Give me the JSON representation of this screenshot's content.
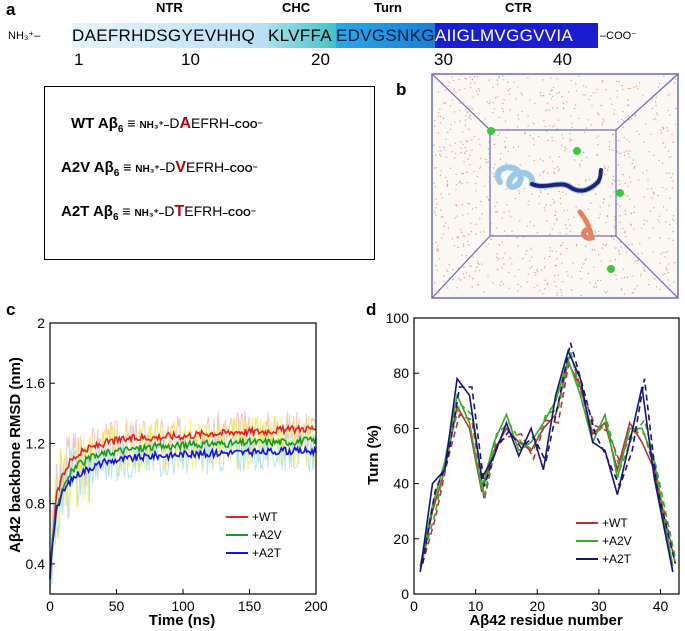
{
  "panel_labels": {
    "a": "a",
    "b": "b",
    "c": "c",
    "d": "d"
  },
  "sequence": {
    "n_term": "NH₃⁺",
    "c_term": "COO⁻",
    "segments": [
      {
        "text": "DAEFRHDSGYEVHHQ",
        "color": "#cfe8f8"
      },
      {
        "text": "KLVFFA",
        "color": "#5cc9cc"
      },
      {
        "text": "EDVGSNKG",
        "color": "#1e9be0"
      },
      {
        "text": "AIIGLMVGGVVIA",
        "color": "#1a1acc"
      }
    ],
    "regions": [
      "NTR",
      "CHC",
      "Turn",
      "CTR"
    ],
    "numbers": [
      "1",
      "10",
      "20",
      "30",
      "40"
    ]
  },
  "variants": [
    {
      "name": "WT Aβ",
      "sub": "6",
      "prefix": "D",
      "mutant": "A",
      "suffix": "EFRH"
    },
    {
      "name": "A2V Aβ",
      "sub": "6",
      "prefix": "D",
      "mutant": "V",
      "suffix": "EFRH"
    },
    {
      "name": "A2T Aβ",
      "sub": "6",
      "prefix": "D",
      "mutant": "T",
      "suffix": "EFRH"
    }
  ],
  "variant_text": {
    "equiv": "≡",
    "nterm": "NH₃⁺–",
    "cterm": "–COO⁻"
  },
  "chart_data": [
    {
      "type": "line",
      "panel": "c",
      "xlabel": "Time (ns)",
      "ylabel": "Aβ42 backbone RMSD (nm)",
      "xlim": [
        0,
        200
      ],
      "ylim": [
        0.2,
        2.0
      ],
      "xticks": [
        "0",
        "50",
        "100",
        "150",
        "200"
      ],
      "yticks": [
        "0.4",
        "0.8",
        "1.2",
        "1.6",
        "2"
      ],
      "legend": "bottom-right",
      "series": [
        {
          "name": "+WT",
          "color": "#e8201e",
          "x": [
            0,
            2,
            5,
            10,
            15,
            20,
            30,
            40,
            50,
            60,
            70,
            80,
            90,
            100,
            110,
            120,
            130,
            140,
            150,
            160,
            170,
            180,
            190,
            200
          ],
          "y": [
            0.3,
            0.6,
            0.85,
            1.0,
            1.08,
            1.12,
            1.17,
            1.2,
            1.22,
            1.23,
            1.24,
            1.24,
            1.25,
            1.25,
            1.26,
            1.27,
            1.27,
            1.28,
            1.28,
            1.28,
            1.29,
            1.29,
            1.3,
            1.3
          ]
        },
        {
          "name": "+A2V",
          "color": "#1a9a1a",
          "x": [
            0,
            2,
            5,
            10,
            15,
            20,
            30,
            40,
            50,
            60,
            70,
            80,
            90,
            100,
            110,
            120,
            130,
            140,
            150,
            160,
            170,
            180,
            190,
            200
          ],
          "y": [
            0.28,
            0.55,
            0.78,
            0.92,
            1.0,
            1.05,
            1.1,
            1.13,
            1.15,
            1.16,
            1.17,
            1.18,
            1.18,
            1.19,
            1.19,
            1.2,
            1.2,
            1.2,
            1.21,
            1.21,
            1.21,
            1.21,
            1.22,
            1.22
          ]
        },
        {
          "name": "+A2T",
          "color": "#1414e0",
          "x": [
            0,
            2,
            5,
            10,
            15,
            20,
            30,
            40,
            50,
            60,
            70,
            80,
            90,
            100,
            110,
            120,
            130,
            140,
            150,
            160,
            170,
            180,
            190,
            200
          ],
          "y": [
            0.3,
            0.55,
            0.76,
            0.88,
            0.95,
            0.99,
            1.04,
            1.07,
            1.09,
            1.1,
            1.11,
            1.12,
            1.12,
            1.13,
            1.13,
            1.13,
            1.14,
            1.14,
            1.14,
            1.14,
            1.15,
            1.15,
            1.15,
            1.15
          ]
        }
      ]
    },
    {
      "type": "line",
      "panel": "d",
      "xlabel": "Aβ42 residue number",
      "ylabel": "Turn (%)",
      "xlim": [
        0,
        43
      ],
      "ylim": [
        0,
        100
      ],
      "xticks": [
        "0",
        "10",
        "20",
        "30",
        "40"
      ],
      "yticks": [
        "0",
        "20",
        "40",
        "60",
        "80",
        "100"
      ],
      "legend": "bottom-right",
      "x": [
        1,
        3,
        5,
        7,
        9,
        11,
        13,
        15,
        17,
        19,
        21,
        23,
        25,
        27,
        29,
        31,
        33,
        35,
        37,
        39,
        42
      ],
      "series": [
        {
          "name": "+WT",
          "color": "#b8323a",
          "values": [
            8,
            30,
            45,
            68,
            60,
            37,
            52,
            60,
            55,
            52,
            60,
            65,
            84,
            75,
            58,
            62,
            45,
            62,
            55,
            45,
            8
          ]
        },
        {
          "name": "+A2V",
          "color": "#3aaa2a",
          "values": [
            10,
            32,
            48,
            72,
            62,
            38,
            55,
            65,
            52,
            55,
            62,
            70,
            85,
            72,
            55,
            65,
            42,
            60,
            60,
            48,
            10
          ]
        },
        {
          "name": "+A2T",
          "color": "#14147a",
          "values": [
            8,
            40,
            45,
            78,
            72,
            42,
            50,
            62,
            50,
            60,
            45,
            72,
            88,
            78,
            55,
            52,
            36,
            55,
            75,
            42,
            8
          ]
        }
      ]
    }
  ]
}
